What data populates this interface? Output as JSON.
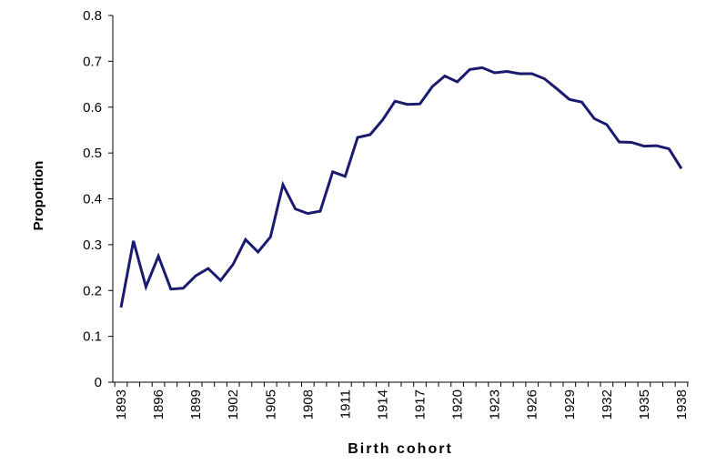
{
  "chart_data": {
    "type": "line",
    "title": "",
    "xlabel": "Birth cohort",
    "ylabel": "Proportion",
    "ylim": [
      0,
      0.8
    ],
    "yticks": [
      "0",
      "0.1",
      "0.2",
      "0.3",
      "0.4",
      "0.5",
      "0.6",
      "0.7",
      "0.8"
    ],
    "xticks": [
      "1893",
      "1896",
      "1899",
      "1902",
      "1905",
      "1908",
      "1911",
      "1914",
      "1917",
      "1920",
      "1923",
      "1926",
      "1929",
      "1932",
      "1935",
      "1938"
    ],
    "grid": false,
    "legend": "none",
    "line_color": "#1a1a6e",
    "series": [
      {
        "x": [
          1893,
          1894,
          1895,
          1896,
          1897,
          1898,
          1899,
          1900,
          1901,
          1902,
          1903,
          1904,
          1905,
          1906,
          1907,
          1908,
          1909,
          1910,
          1911,
          1912,
          1913,
          1914,
          1915,
          1916,
          1917,
          1918,
          1919,
          1920,
          1921,
          1922,
          1923,
          1924,
          1925,
          1926,
          1927,
          1928,
          1929,
          1930,
          1931,
          1932,
          1933,
          1934,
          1935,
          1936,
          1937,
          1938
        ],
        "values": [
          0.163,
          0.308,
          0.208,
          0.275,
          0.203,
          0.205,
          0.232,
          0.248,
          0.222,
          0.257,
          0.311,
          0.284,
          0.317,
          0.431,
          0.378,
          0.368,
          0.373,
          0.459,
          0.449,
          0.534,
          0.54,
          0.572,
          0.613,
          0.606,
          0.607,
          0.645,
          0.668,
          0.655,
          0.682,
          0.686,
          0.675,
          0.678,
          0.673,
          0.673,
          0.662,
          0.64,
          0.617,
          0.611,
          0.575,
          0.562,
          0.524,
          0.523,
          0.515,
          0.516,
          0.509,
          0.466
        ]
      }
    ]
  }
}
